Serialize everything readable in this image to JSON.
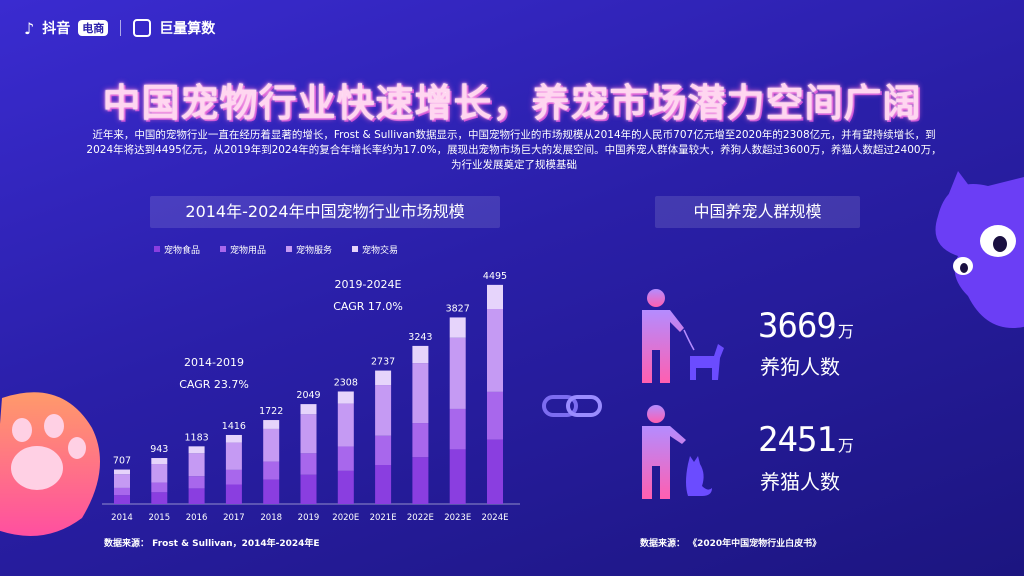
{
  "brand": {
    "douyin": "抖音",
    "ecommerce_badge": "电商",
    "juliang": "巨量算数"
  },
  "title": "中国宠物行业快速增长，养宠市场潜力空间广阔",
  "intro": "近年来，中国的宠物行业一直在经历着显著的增长，Frost & Sullivan数据显示，中国宠物行业的市场规模从2014年的人民币707亿元增至2020年的2308亿元，并有望持续增长，到2024年将达到4495亿元，从2019年到2024年的复合年增长率约为17.0%，展现出宠物市场巨大的发展空间。中国养宠人群体量较大，养狗人数超过3600万，养猫人数超过2400万，为行业发展奠定了规模基础",
  "left_section": {
    "label": "2014年-2024年中国宠物行业市场规模",
    "source": "数据来源：    Frost & Sullivan，2014年-2024年E"
  },
  "right_section": {
    "label": "中国养宠人群规模",
    "source": "数据来源：    《2020年中国宠物行业白皮书》",
    "dog_value": "3669",
    "dog_unit": "万",
    "dog_label": "养狗人数",
    "cat_value": "2451",
    "cat_unit": "万",
    "cat_label": "养猫人数"
  },
  "colors": {
    "food": "#8a3ee0",
    "supplies": "#a867ec",
    "services": "#c59af3",
    "trade": "#e6d4fb",
    "title_glow": "#ff6ad0"
  },
  "chart_data": {
    "type": "bar",
    "stacked": true,
    "categories": [
      "2014",
      "2015",
      "2016",
      "2017",
      "2018",
      "2019",
      "2020E",
      "2021E",
      "2022E",
      "2023E",
      "2024E"
    ],
    "totals": [
      707,
      943,
      1183,
      1416,
      1722,
      2049,
      2308,
      2737,
      3243,
      3827,
      4495
    ],
    "series": [
      {
        "name": "宠物食品",
        "color": "#8a3ee0",
        "values": [
          180,
          240,
          320,
          400,
          500,
          600,
          680,
          800,
          960,
          1120,
          1320
        ]
      },
      {
        "name": "宠物用品",
        "color": "#a867ec",
        "values": [
          150,
          200,
          250,
          300,
          370,
          440,
          500,
          600,
          700,
          830,
          980
        ]
      },
      {
        "name": "宠物服务",
        "color": "#c59af3",
        "values": [
          280,
          380,
          470,
          560,
          670,
          800,
          880,
          1040,
          1230,
          1460,
          1700
        ]
      },
      {
        "name": "宠物交易",
        "color": "#e6d4fb",
        "values": [
          97,
          123,
          143,
          156,
          182,
          209,
          248,
          297,
          353,
          417,
          495
        ]
      }
    ],
    "annotations": [
      {
        "line1": "2014-2019",
        "line2": "CAGR 23.7%"
      },
      {
        "line1": "2019-2024E",
        "line2": "CAGR 17.0%"
      }
    ],
    "ylim": [
      0,
      4800
    ],
    "grid": false,
    "legend": "top-left"
  }
}
